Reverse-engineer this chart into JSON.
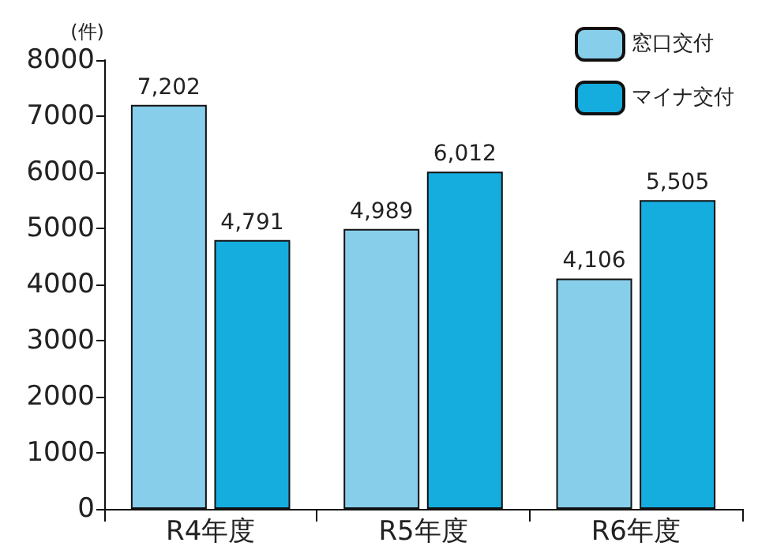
{
  "chart_data": {
    "type": "bar",
    "ylabel": "(件)",
    "categories": [
      "R4年度",
      "R5年度",
      "R6年度"
    ],
    "series": [
      {
        "name": "窓口交付",
        "color": "#87ceeb",
        "values": [
          7202,
          4989,
          4106
        ]
      },
      {
        "name": "マイナ交付",
        "color": "#15acde",
        "values": [
          4791,
          6012,
          5505
        ]
      }
    ],
    "ylim": [
      0,
      8000
    ],
    "yticks": [
      0,
      1000,
      2000,
      3000,
      4000,
      5000,
      6000,
      7000,
      8000
    ],
    "value_labels": [
      [
        "7,202",
        "4,989",
        "4,106"
      ],
      [
        "4,791",
        "6,012",
        "5,505"
      ]
    ],
    "grid": false,
    "legend": "top right"
  }
}
